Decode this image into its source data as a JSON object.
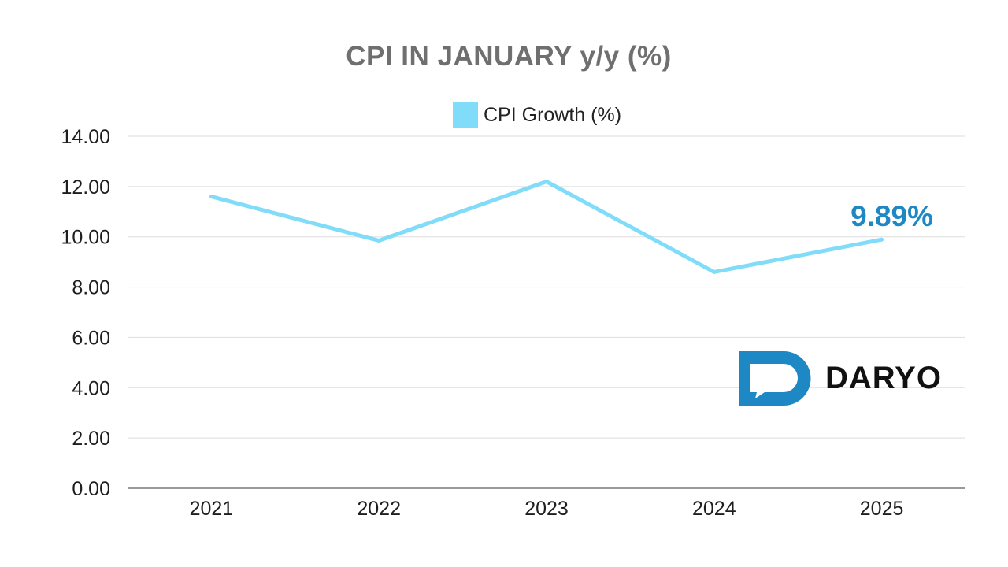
{
  "chart_data": {
    "type": "line",
    "title": "CPI IN JANUARY y/y (%)",
    "categories": [
      "2021",
      "2022",
      "2023",
      "2024",
      "2025"
    ],
    "series": [
      {
        "name": "CPI Growth (%)",
        "values": [
          11.6,
          9.85,
          12.2,
          8.6,
          9.89
        ],
        "color": "#80dcf8"
      }
    ],
    "y_ticks": [
      "0.00",
      "2.00",
      "4.00",
      "6.00",
      "8.00",
      "10.00",
      "12.00",
      "14.00"
    ],
    "ylim": [
      0,
      14
    ],
    "grid": true,
    "legend": "top-center",
    "annotations": [
      {
        "category": "2025",
        "text": "9.89%"
      }
    ]
  },
  "logo": {
    "text": "DARYO",
    "color": "#1e88c5",
    "icon": "chat-bubble-icon"
  }
}
